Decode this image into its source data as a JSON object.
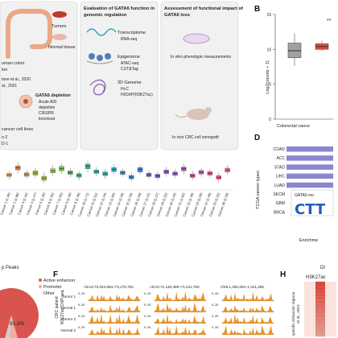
{
  "panels": {
    "A": {
      "tumors": "Tumors",
      "normal_tissue": "Normal tissue",
      "human_colon_1": "uman colon",
      "human_colon_2": "lon",
      "cite_1": "tone et al., 2020",
      "cite_2": "al., 2021",
      "depletion_title": "GATA6 depletion",
      "depletion_1": "Acute AID",
      "depletion_2": "depletion",
      "depletion_3": "CRISPR",
      "depletion_4": "knockout",
      "cell_lines": "cancer cell lines",
      "cell_line_1": "o-2",
      "cell_line_2": "D-1"
    },
    "A2": {
      "title_1": "Evaluation of GATA6 function in",
      "title_2": "genomic regulation",
      "transcriptome": "Transcriptome",
      "rnaseq": "RNA-seq",
      "epigenome": "Epigenome",
      "atac": "ATAC-seq",
      "cut": "CUT&Tag",
      "genome3d": "3D Genome",
      "hic": "Hi-C",
      "hichip": "HiChIP(H3K27ac)"
    },
    "A3": {
      "title_1": "Assessment of functional impact of",
      "title_2": "GATA6 loss",
      "invitro": "In vitro phenotypic measurements",
      "invivo": "In vivo CRC cell xenograft"
    },
    "B": {
      "label": "B",
      "ylabel": "Log2(counts + 1)",
      "xlabel": "Colorectal cance",
      "sig": "**",
      "ticks": [
        "15",
        "10",
        "5",
        "0"
      ]
    },
    "C": {
      "ticks": [
        "Cancer 1 (1.40)",
        "Cancer 2 (1.66)",
        "Cancer 3 (1.42)",
        "Cancer 4 (1.47)",
        "Cancer 5 (1.30)",
        "Cancer 6 (1.55)",
        "Cancer 7 (1.63)",
        "Cancer 8 (1.48)",
        "Cancer 9 (1.39)",
        "Cancer 10 (1.71)",
        "Cancer 11 (1.52)",
        "Cancer 12 (1.44)",
        "Cancer 13 (1.60)",
        "Cancer 14 (1.48)",
        "Cancer 15 (1.33)",
        "Cancer 16 (1.59)",
        "Cancer 17 (1.41)",
        "Cancer 18 (1.37)",
        "Cancer 19 (1.52)",
        "Cancer 20 (1.45)",
        "Cancer 21 (1.62)",
        "Cancer 22 (1.38)",
        "Cancer 23 (1.50)",
        "Cancer 24 (1.46)",
        "Cancer 25 (1.32)",
        "Cancer 26 (1.58)"
      ]
    },
    "D": {
      "label": "D",
      "ylabel": "TCGA cancer types",
      "categories": [
        "COAD",
        "ACC",
        "STAD",
        "LIHC",
        "LUAD",
        "SKCM",
        "GBM",
        "BRCA"
      ],
      "motif_title": "GATA6 mo",
      "motif_text": "CTT",
      "xlabel": "Enrichme"
    },
    "E": {
      "title": "p Peaks",
      "legend": [
        "Active enhancer",
        "Promoter",
        "Other"
      ],
      "pct": "91.3%"
    },
    "F": {
      "label": "F",
      "regions": [
        "chr13:73,024,684–73,179,750",
        "chr12:71,130,469–71,221,760",
        "chr6:1,305,304–1,341,285"
      ],
      "rows": [
        "Tumor 1",
        "Normal 1",
        "Tumor 2",
        "Normal 2"
      ],
      "scale": "0–30",
      "side_label_1": "CRC patient",
      "side_label_2": "H3K27ac ChIP-seq"
    },
    "H": {
      "label": "H",
      "title": "H3K27ac",
      "top": "DI",
      "side_1": "specific enhancer regions",
      "side_2": "et al., 2021"
    }
  },
  "chart_data": [
    {
      "type": "box",
      "panel": "B",
      "categories": [
        "Normal",
        "Tumor"
      ],
      "series": [
        {
          "stats": {
            "min": 7.6,
            "q1": 8.8,
            "median": 9.8,
            "q3": 10.9,
            "max": 12.3
          },
          "color": "#a0a0a0"
        },
        {
          "stats": {
            "min": 9.8,
            "q1": 10.0,
            "median": 10.4,
            "q3": 10.8,
            "max": 11.2
          },
          "color": "#e04a3c"
        }
      ],
      "ylim": [
        0,
        15
      ]
    },
    {
      "type": "box",
      "panel": "C",
      "boxes": [
        {
          "median": 1.4,
          "q1": 1.35,
          "q3": 1.46,
          "min": 1.25,
          "max": 1.55,
          "color": "#e6a23c"
        },
        {
          "median": 1.66,
          "q1": 1.58,
          "q3": 1.72,
          "min": 1.45,
          "max": 1.85,
          "color": "#e07b39"
        },
        {
          "median": 1.42,
          "q1": 1.36,
          "q3": 1.48,
          "min": 1.28,
          "max": 1.58,
          "color": "#c9a227"
        },
        {
          "median": 1.47,
          "q1": 1.4,
          "q3": 1.55,
          "min": 1.3,
          "max": 1.66,
          "color": "#b6b22a"
        },
        {
          "median": 1.3,
          "q1": 1.22,
          "q3": 1.36,
          "min": 1.12,
          "max": 1.5,
          "color": "#a3b931"
        },
        {
          "median": 1.55,
          "q1": 1.48,
          "q3": 1.62,
          "min": 1.38,
          "max": 1.75,
          "color": "#8cc63f"
        },
        {
          "median": 1.63,
          "q1": 1.55,
          "q3": 1.7,
          "min": 1.44,
          "max": 1.8,
          "color": "#67bd45"
        },
        {
          "median": 1.48,
          "q1": 1.42,
          "q3": 1.55,
          "min": 1.32,
          "max": 1.65,
          "color": "#4cb84d"
        },
        {
          "median": 1.39,
          "q1": 1.33,
          "q3": 1.45,
          "min": 1.22,
          "max": 1.55,
          "color": "#3fb56c"
        },
        {
          "median": 1.71,
          "q1": 1.62,
          "q3": 1.78,
          "min": 1.5,
          "max": 1.9,
          "color": "#33b38a"
        },
        {
          "median": 1.52,
          "q1": 1.46,
          "q3": 1.58,
          "min": 1.36,
          "max": 1.68,
          "color": "#2ab3a3"
        },
        {
          "median": 1.44,
          "q1": 1.38,
          "q3": 1.51,
          "min": 1.28,
          "max": 1.62,
          "color": "#23b0b8"
        },
        {
          "median": 1.6,
          "q1": 1.52,
          "q3": 1.66,
          "min": 1.42,
          "max": 1.78,
          "color": "#22a7c6"
        },
        {
          "median": 1.48,
          "q1": 1.42,
          "q3": 1.54,
          "min": 1.34,
          "max": 1.63,
          "color": "#259ad0"
        },
        {
          "median": 1.33,
          "q1": 1.27,
          "q3": 1.39,
          "min": 1.18,
          "max": 1.5,
          "color": "#2b8bd8"
        },
        {
          "median": 1.59,
          "q1": 1.51,
          "q3": 1.66,
          "min": 1.42,
          "max": 1.76,
          "color": "#3a7bdb"
        },
        {
          "median": 1.41,
          "q1": 1.35,
          "q3": 1.47,
          "min": 1.26,
          "max": 1.58,
          "color": "#4f6bd9"
        },
        {
          "median": 1.37,
          "q1": 1.31,
          "q3": 1.43,
          "min": 1.22,
          "max": 1.53,
          "color": "#6a5fd6"
        },
        {
          "median": 1.52,
          "q1": 1.45,
          "q3": 1.58,
          "min": 1.35,
          "max": 1.69,
          "color": "#8457d0"
        },
        {
          "median": 1.45,
          "q1": 1.39,
          "q3": 1.51,
          "min": 1.3,
          "max": 1.61,
          "color": "#9b52c8"
        },
        {
          "median": 1.62,
          "q1": 1.55,
          "q3": 1.68,
          "min": 1.44,
          "max": 1.79,
          "color": "#b04fbd"
        },
        {
          "median": 1.38,
          "q1": 1.32,
          "q3": 1.44,
          "min": 1.22,
          "max": 1.55,
          "color": "#c24db0"
        },
        {
          "median": 1.5,
          "q1": 1.44,
          "q3": 1.56,
          "min": 1.34,
          "max": 1.66,
          "color": "#d04da1"
        },
        {
          "median": 1.46,
          "q1": 1.4,
          "q3": 1.52,
          "min": 1.3,
          "max": 1.62,
          "color": "#dc4f90"
        },
        {
          "median": 1.32,
          "q1": 1.26,
          "q3": 1.38,
          "min": 1.16,
          "max": 1.48,
          "color": "#e3567e"
        },
        {
          "median": 1.58,
          "q1": 1.51,
          "q3": 1.64,
          "min": 1.42,
          "max": 1.74,
          "color": "#e8616e"
        }
      ],
      "highlight_index": 11,
      "ylim": [
        1.0,
        2.0
      ]
    },
    {
      "type": "bar",
      "panel": "D",
      "orientation": "horizontal",
      "categories": [
        "COAD",
        "ACC",
        "STAD",
        "LIHC",
        "LUAD",
        "SKCM",
        "GBM",
        "BRCA"
      ],
      "values": [
        100,
        100,
        100,
        100,
        100,
        25,
        25,
        25
      ],
      "color": "#8b86d0"
    },
    {
      "type": "pie",
      "panel": "E",
      "categories": [
        "Active enhancer",
        "Promoter",
        "Other"
      ],
      "values": [
        91.3,
        5.4,
        3.3
      ],
      "colors": [
        "#d9534f",
        "#f0ad9e",
        "#cccccc"
      ]
    },
    {
      "type": "area",
      "panel": "F",
      "tracks_per_region": 4,
      "regions": 3,
      "ymax": 30,
      "color": "#e8942a",
      "seed": 7
    },
    {
      "type": "heatmap",
      "panel": "H",
      "colormap": "red",
      "rows": 40
    }
  ]
}
